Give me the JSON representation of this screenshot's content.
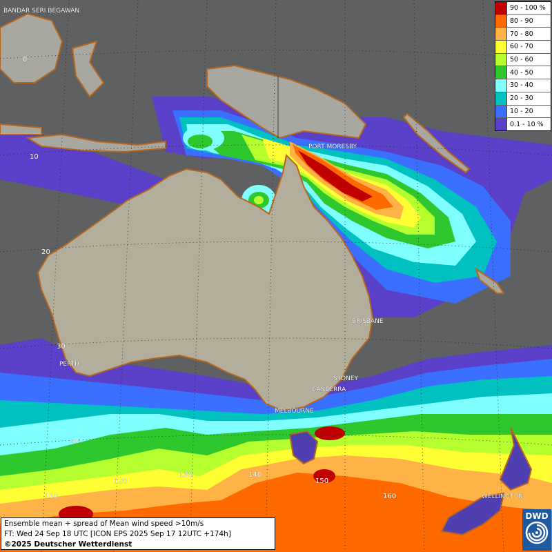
{
  "legend": {
    "items": [
      {
        "label": "90 - 100 %",
        "color": "#c00000"
      },
      {
        "label": "80 - 90",
        "color": "#ff6a00"
      },
      {
        "label": "70 - 80",
        "color": "#ffb347"
      },
      {
        "label": "60 - 70",
        "color": "#ffff33"
      },
      {
        "label": "50 - 60",
        "color": "#b5ff2e"
      },
      {
        "label": "40 - 50",
        "color": "#2ec82e"
      },
      {
        "label": "30 - 40",
        "color": "#7fffff"
      },
      {
        "label": "20 - 30",
        "color": "#00c0c0"
      },
      {
        "label": "10 - 20",
        "color": "#3b6fff"
      },
      {
        "label": "0.1 - 10 %",
        "color": "#5a3fc8"
      }
    ]
  },
  "cities": {
    "bandar": "BANDAR SERI BEGAWAN",
    "port_moresby": "PORT MORESBY",
    "brisbane": "BRISBANE",
    "perth": "PERTH",
    "sydney": "SYDNEY",
    "canberra": "CANBERRA",
    "melbourne": "MELBOURNE",
    "wellington": "WELLINGTON"
  },
  "grid": {
    "lat_0": "0",
    "lat_10": "10",
    "lat_20": "20",
    "lat_30": "30",
    "lat_40": "40",
    "lon_110": "110",
    "lon_120": "120",
    "lon_130": "130",
    "lon_140": "140",
    "lon_150": "150",
    "lon_160": "160"
  },
  "info": {
    "line1": "Ensemble mean + spread of Mean wind speed >10m/s",
    "line2": "FT: Wed 24 Sep 18 UTC [ICON EPS 2025 Sep 17 12UTC +174h]",
    "copyright": "©2025 Deutscher Wetterdienst"
  },
  "logo": {
    "text": "DWD"
  }
}
